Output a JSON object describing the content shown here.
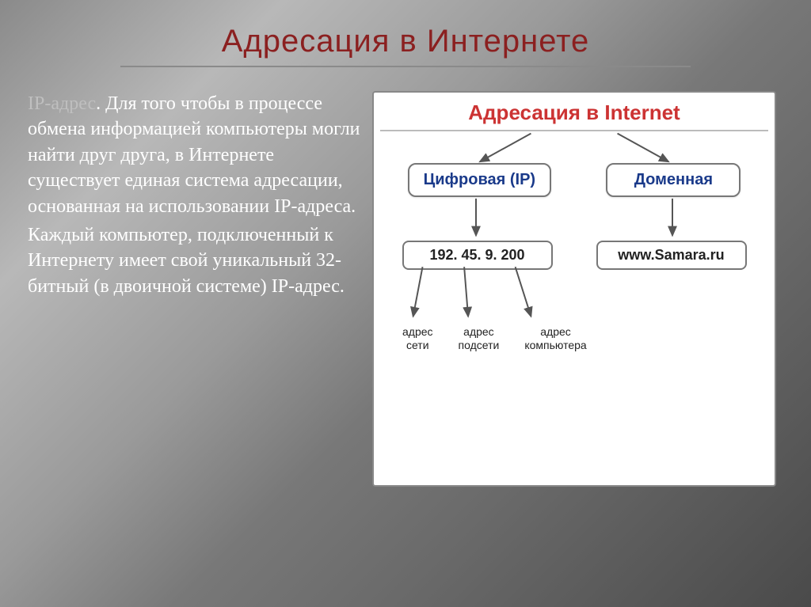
{
  "title": "Адресация в Интернете",
  "body_text": {
    "lead": "IP-адрес",
    "para1": ". Для того чтобы в процессе обмена информацией компьютеры могли найти друг друга, в Интернете существует единая система адресации, основанная на использовании IP-адреса.",
    "para2": "Каждый компьютер, подключенный к Интернету имеет свой уникальный 32-битный (в двоичной системе) IP-адрес."
  },
  "figure": {
    "title": "Адресация в Internet",
    "branches": {
      "left": {
        "label": "Цифровая (IP)",
        "value": "192. 45. 9. 200"
      },
      "right": {
        "label": "Доменная",
        "value": "www.Samara.ru"
      }
    },
    "ip_parts": {
      "network": "адрес\nсети",
      "subnet": "адрес\nподсети",
      "host": "адрес\nкомпьютера"
    },
    "colors": {
      "title_color": "#cc3333",
      "box_text": "#1a3a8a",
      "border": "#777777",
      "arrow": "#555555"
    }
  }
}
